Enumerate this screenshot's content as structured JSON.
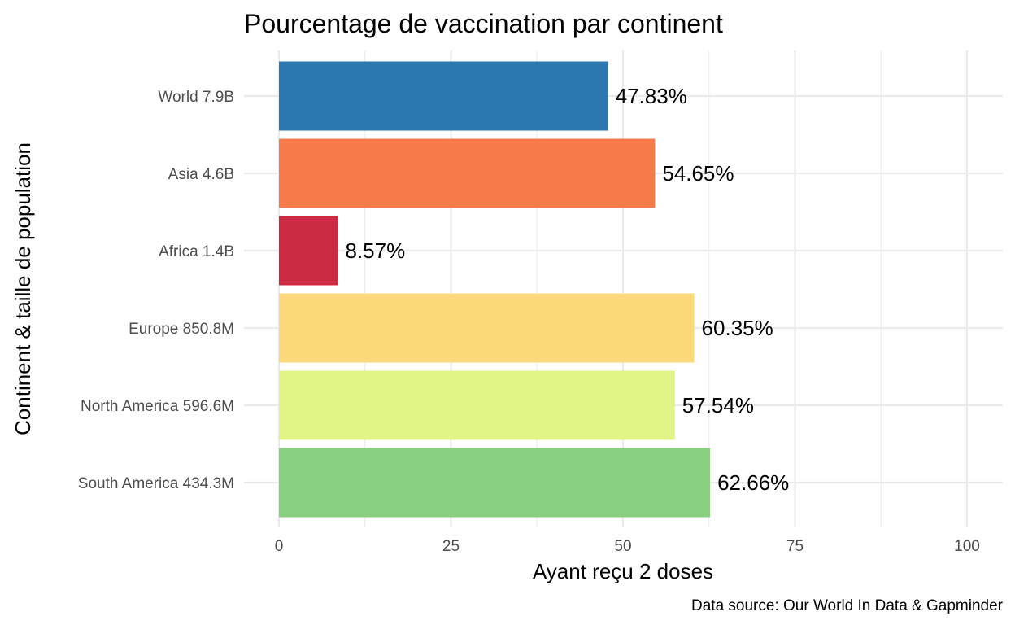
{
  "chart_data": {
    "type": "bar",
    "orientation": "horizontal",
    "title": "Pourcentage de vaccination par continent",
    "xlabel": "Ayant reçu 2 doses",
    "ylabel": "Continent & taille de population",
    "caption": "Data source: Our World In Data & Gapminder",
    "categories": [
      "World 7.9B",
      "Asia 4.6B",
      "Africa 1.4B",
      "Europe 850.8M",
      "North America 596.6M",
      "South America 434.3M"
    ],
    "values": [
      47.83,
      54.65,
      8.57,
      60.35,
      57.54,
      62.66
    ],
    "data_labels": [
      "47.83%",
      "54.65%",
      "8.57%",
      "60.35%",
      "57.54%",
      "62.66%"
    ],
    "colors": [
      "#2b77b0",
      "#f77b4a",
      "#cb2a42",
      "#fbd97b",
      "#e0f585",
      "#88cf80"
    ],
    "xlim": [
      0,
      100
    ],
    "xticks": [
      0,
      25,
      50,
      75,
      100
    ],
    "xtick_labels": [
      "0",
      "25",
      "50",
      "75",
      "100"
    ],
    "grid": true,
    "legend": false
  }
}
